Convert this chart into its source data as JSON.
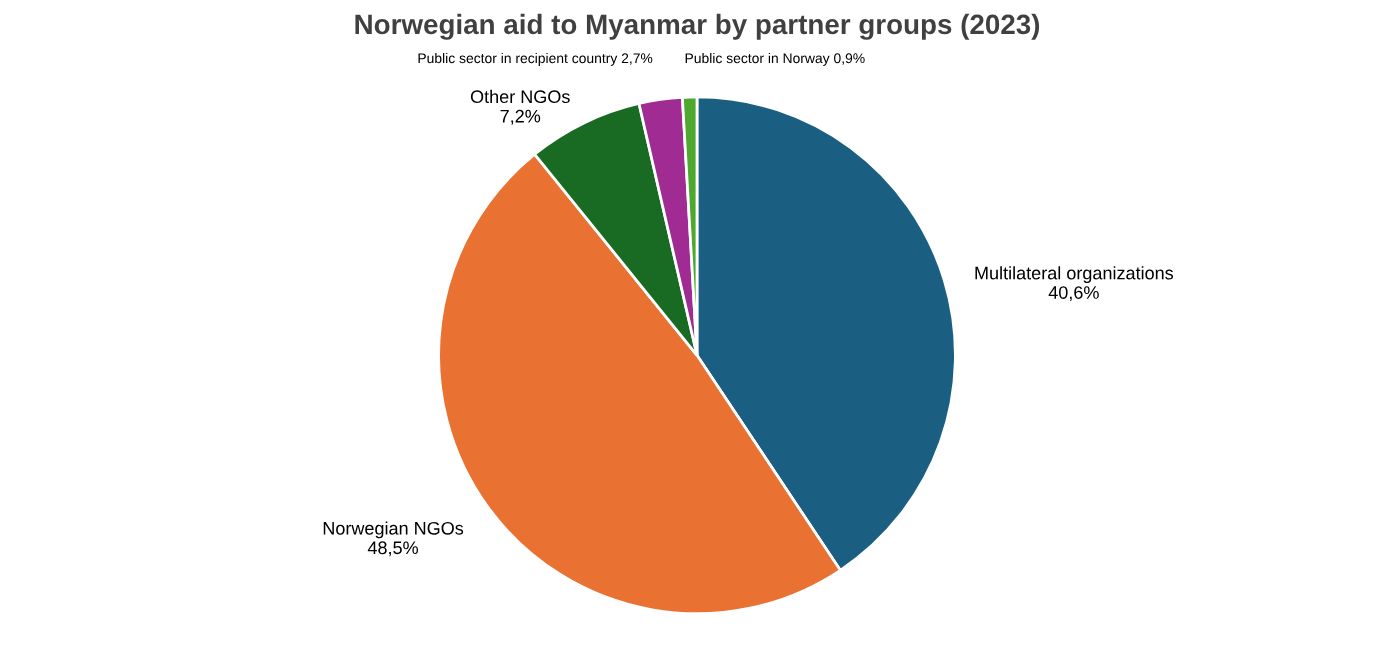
{
  "chart_data": {
    "type": "pie",
    "title": "Norwegian aid to Myanmar by partner groups (2023)",
    "categories": [
      "Multilateral organizations",
      "Norwegian NGOs",
      "Other NGOs",
      "Public sector in recipient country",
      "Public sector in Norway"
    ],
    "values": [
      40.6,
      48.5,
      7.2,
      2.7,
      0.9
    ],
    "value_labels": [
      "40,6%",
      "48,5%",
      "7,2%",
      "2,7%",
      "0,9%"
    ],
    "colors": [
      "#1a5f82",
      "#e97132",
      "#196b24",
      "#a02b93",
      "#4ea72e"
    ],
    "legend": false
  }
}
